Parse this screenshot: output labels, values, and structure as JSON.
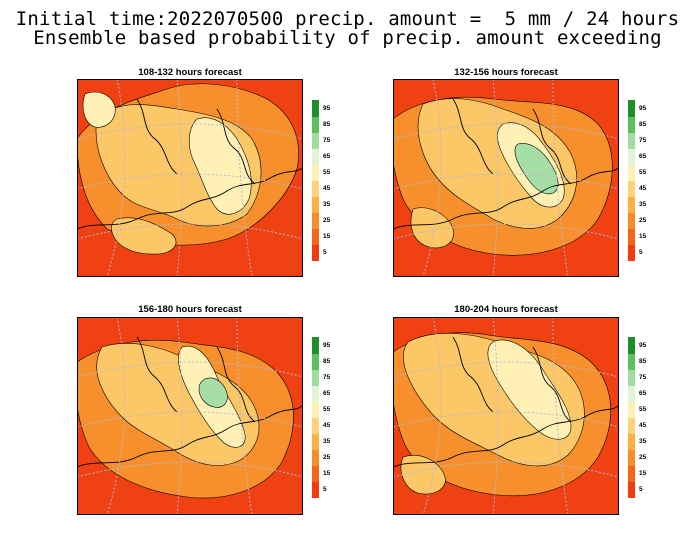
{
  "title": {
    "line1": "Initial time:2022070500 precip. amount =  5 mm / 24 hours",
    "line2": "Ensemble based probability of precip. amount exceeding"
  },
  "panels": [
    {
      "label": "108-132 hours forecast"
    },
    {
      "label": "132-156 hours forecast"
    },
    {
      "label": "156-180 hours forecast"
    },
    {
      "label": "180-204 hours forecast"
    }
  ],
  "colorbar": {
    "levels": [
      "5",
      "15",
      "25",
      "35",
      "45",
      "55",
      "65",
      "75",
      "85",
      "95"
    ],
    "colors": [
      "#f03c10",
      "#f66418",
      "#f88c28",
      "#fbb040",
      "#fed27a",
      "#fff0b4",
      "#e2f3d6",
      "#a4dca0",
      "#5cc05c",
      "#1e8f2a"
    ]
  },
  "map_colors": {
    "deep": "#ef4112",
    "mid": "#f7902c",
    "light": "#fcc766",
    "pale": "#fff1b6",
    "green": "#a7dea6",
    "grid": "#b7b7d3"
  }
}
